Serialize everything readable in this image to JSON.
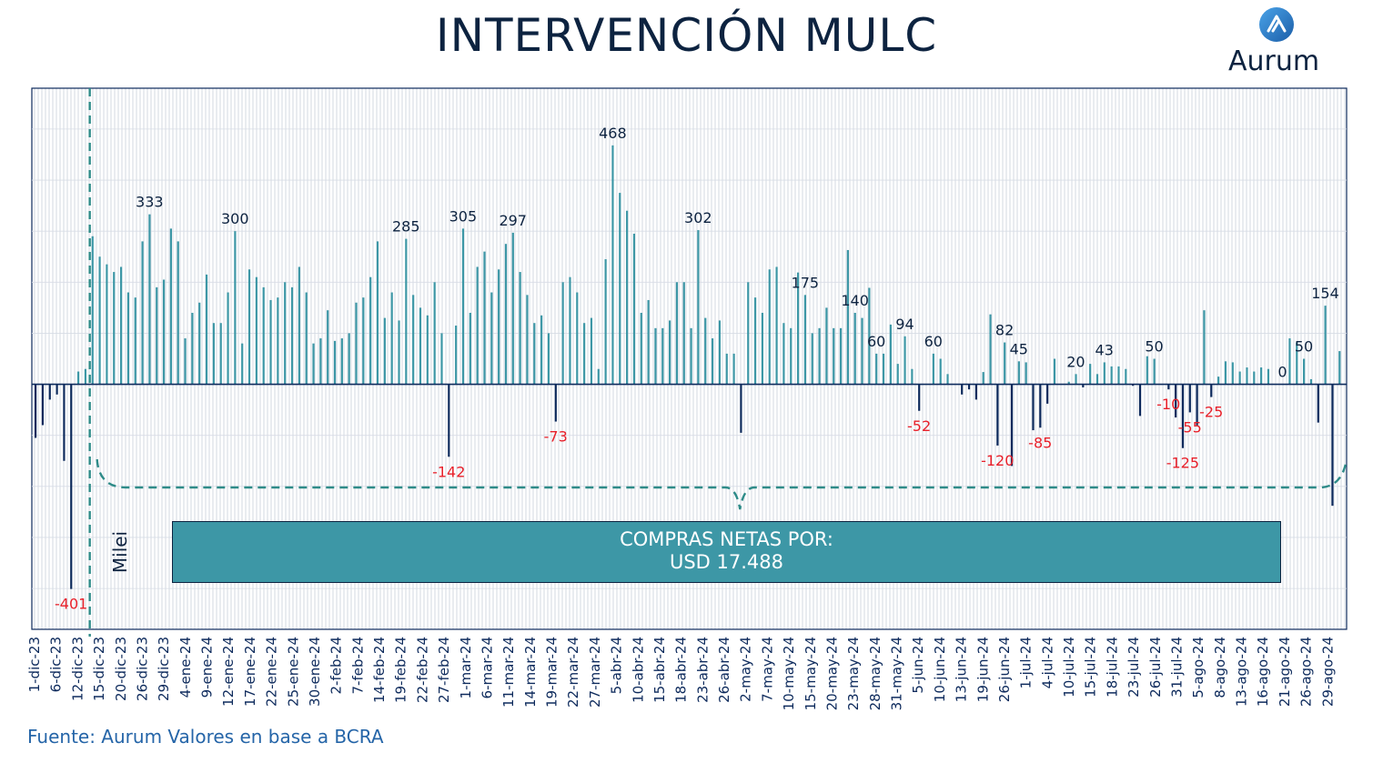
{
  "title": "INTERVENCIÓN MULC",
  "logo": {
    "text": "Aurum",
    "icon": "aurum-logo-icon"
  },
  "source": "Fuente: Aurum Valores en base a BCRA",
  "callout": {
    "line1": "COMPRAS NETAS POR:",
    "line2": "USD 17.488"
  },
  "marker_label": "Milei",
  "colors": {
    "positive": "#3d97a6",
    "negative": "#0d2a5c",
    "label_positive": "#0d2340",
    "label_negative": "#e8202a",
    "axis": "#0d2a5c",
    "dashed": "#2e8b88"
  },
  "chart_data": {
    "type": "bar",
    "ylim": [
      -480,
      580
    ],
    "grid": true,
    "tick_labels": [
      "1-dic-23",
      "6-dic-23",
      "12-dic-23",
      "15-dic-23",
      "20-dic-23",
      "26-dic-23",
      "29-dic-23",
      "4-ene-24",
      "9-ene-24",
      "12-ene-24",
      "17-ene-24",
      "22-ene-24",
      "25-ene-24",
      "30-ene-24",
      "2-feb-24",
      "7-feb-24",
      "14-feb-24",
      "19-feb-24",
      "22-feb-24",
      "27-feb-24",
      "1-mar-24",
      "6-mar-24",
      "11-mar-24",
      "14-mar-24",
      "19-mar-24",
      "22-mar-24",
      "27-mar-24",
      "5-abr-24",
      "10-abr-24",
      "15-abr-24",
      "18-abr-24",
      "23-abr-24",
      "26-abr-24",
      "2-may-24",
      "7-may-24",
      "10-may-24",
      "15-may-24",
      "20-may-24",
      "23-may-24",
      "28-may-24",
      "31-may-24",
      "5-jun-24",
      "10-jun-24",
      "13-jun-24",
      "19-jun-24",
      "26-jun-24",
      "1-jul-24",
      "4-jul-24",
      "10-jul-24",
      "15-jul-24",
      "18-jul-24",
      "23-jul-24",
      "26-jul-24",
      "31-jul-24",
      "5-ago-24",
      "8-ago-24",
      "13-ago-24",
      "16-ago-24",
      "21-ago-24",
      "26-ago-24",
      "29-ago-24"
    ],
    "values": [
      -105,
      -80,
      -30,
      -20,
      -150,
      -401,
      25,
      30,
      290,
      250,
      235,
      220,
      230,
      180,
      170,
      280,
      333,
      190,
      205,
      305,
      280,
      90,
      140,
      160,
      215,
      120,
      120,
      180,
      300,
      80,
      225,
      210,
      190,
      165,
      170,
      200,
      190,
      230,
      180,
      80,
      90,
      145,
      85,
      90,
      100,
      160,
      170,
      210,
      280,
      130,
      180,
      125,
      285,
      175,
      150,
      135,
      200,
      100,
      -142,
      115,
      305,
      140,
      230,
      260,
      180,
      225,
      275,
      297,
      220,
      175,
      120,
      135,
      100,
      -73,
      200,
      210,
      180,
      120,
      130,
      30,
      245,
      468,
      375,
      340,
      295,
      140,
      165,
      110,
      110,
      125,
      200,
      200,
      110,
      302,
      130,
      90,
      125,
      60,
      60,
      -95,
      200,
      170,
      140,
      225,
      230,
      120,
      110,
      219,
      175,
      100,
      110,
      150,
      110,
      110,
      263,
      140,
      130,
      189,
      60,
      60,
      117,
      40,
      94,
      30,
      -52,
      0,
      60,
      50,
      20,
      0,
      -20,
      -10,
      -30,
      24,
      137,
      -120,
      82,
      -160,
      45,
      43,
      -90,
      -85,
      -38,
      50,
      0,
      5,
      20,
      -6,
      40,
      20,
      43,
      35,
      35,
      30,
      -3,
      -62,
      55,
      50,
      -1,
      -10,
      -65,
      -125,
      -55,
      -80,
      145,
      -25,
      15,
      45,
      43,
      25,
      33,
      25,
      33,
      30,
      0,
      0,
      90,
      82,
      50,
      10,
      -75,
      154,
      -238,
      65
    ]
  }
}
